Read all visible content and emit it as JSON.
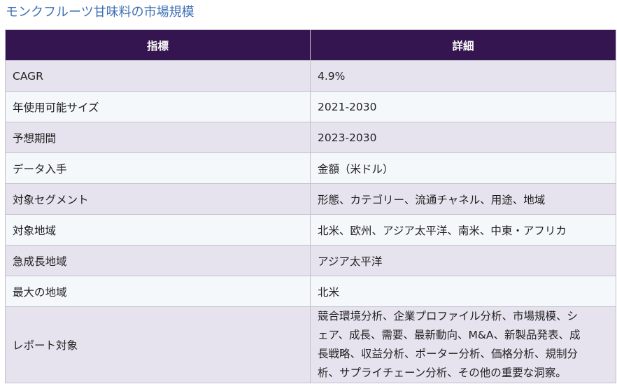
{
  "title": "モンクフルーツ甘味料の市場規模",
  "table": {
    "headers": [
      "指標",
      "詳細"
    ],
    "rows": [
      {
        "label": "CAGR",
        "value": "4.9%"
      },
      {
        "label": "年使用可能サイズ",
        "value": "2021-2030"
      },
      {
        "label": "予想期間",
        "value": "2023-2030"
      },
      {
        "label": "データ入手",
        "value": "金額（米ドル）"
      },
      {
        "label": "対象セグメント",
        "value": "形態、カテゴリー、流通チャネル、用途、地域"
      },
      {
        "label": "対象地域",
        "value": "北米、欧州、アジア太平洋、南米、中東・アフリカ"
      },
      {
        "label": "急成長地域",
        "value": "アジア太平洋"
      },
      {
        "label": "最大の地域",
        "value": "北米"
      },
      {
        "label": "レポート対象",
        "value_lines": [
          "競合環境分析、企業プロファイル分析、市場規模、シ",
          "ェア、成長、需要、最新動向、M&A、新製品発表、成",
          "長戦略、収益分析、ポーター分析、価格分析、規制分",
          "析、サプライチェーン分析、その他の重要な洞察。"
        ]
      }
    ]
  }
}
